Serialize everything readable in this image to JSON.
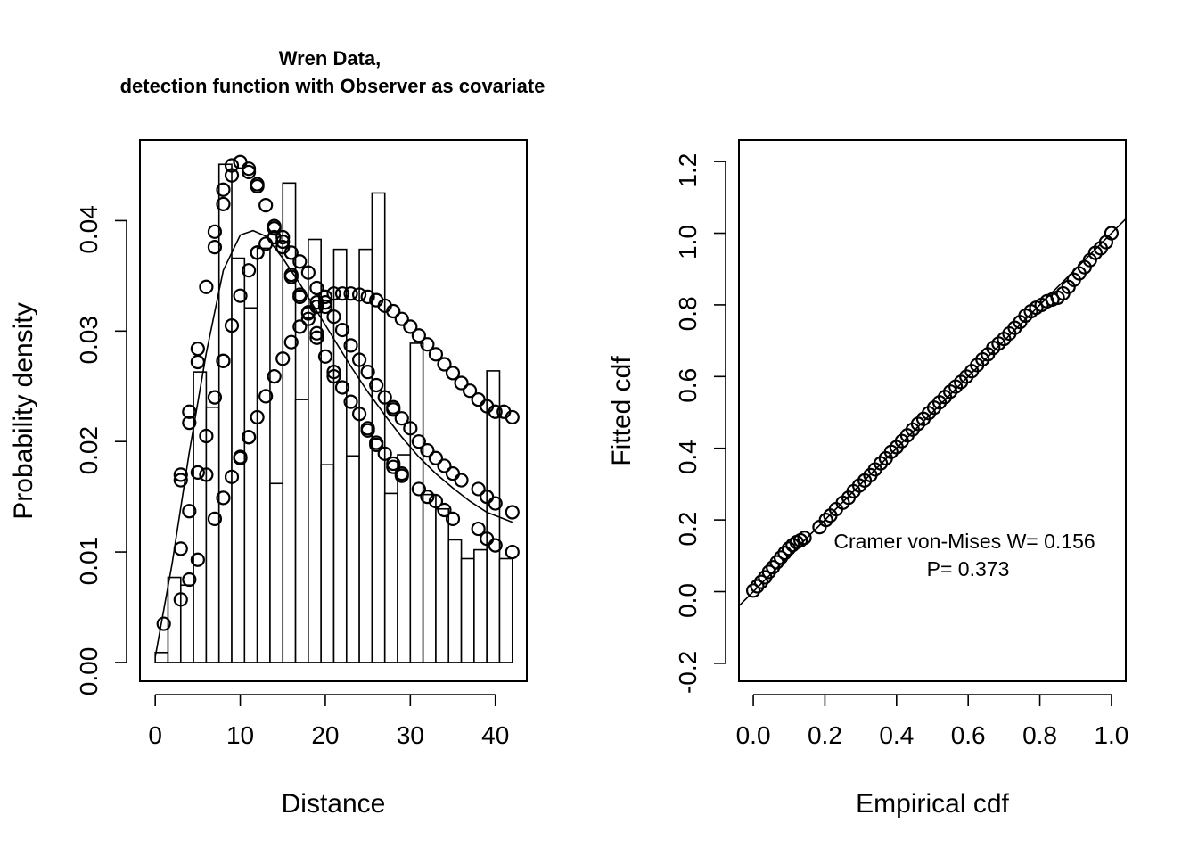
{
  "chart_data": [
    {
      "type": "histogram",
      "title": "Wren Data,\ndetection function with Observer as covariate",
      "xlabel": "Distance",
      "ylabel": "Probability density",
      "xlim": [
        -1.8,
        43.7
      ],
      "ylim": [
        -0.0017,
        0.0473
      ],
      "xticks": [
        0,
        10,
        20,
        30,
        40
      ],
      "yticks": [
        0.0,
        0.01,
        0.02,
        0.03,
        0.04
      ],
      "xtick_labels": [
        "0",
        "10",
        "20",
        "30",
        "40"
      ],
      "ytick_labels": [
        "0.00",
        "0.01",
        "0.02",
        "0.03",
        "0.04"
      ],
      "bin_edges": [
        0,
        1.5,
        3,
        4.5,
        6,
        7.5,
        9,
        10.5,
        12,
        13.5,
        15,
        16.5,
        18,
        19.5,
        21,
        22.5,
        24,
        25.5,
        27,
        28.5,
        30,
        31.5,
        33,
        34.5,
        36,
        37.5,
        39,
        40.5,
        42
      ],
      "bar_values": [
        0.0009,
        0.0077,
        0.007,
        0.0263,
        0.0231,
        0.0451,
        0.0366,
        0.0321,
        0.0375,
        0.0162,
        0.0434,
        0.0238,
        0.0383,
        0.0179,
        0.0374,
        0.0187,
        0.0374,
        0.0425,
        0.0153,
        0.0188,
        0.0289,
        0.0152,
        0.0139,
        0.0111,
        0.0094,
        0.0102,
        0.0264,
        0.0094
      ],
      "average_curve": {
        "x": [
          0,
          2,
          4,
          6,
          8,
          10,
          11.5,
          13,
          15,
          17,
          19,
          21,
          23,
          25,
          27,
          29,
          31,
          33,
          35,
          37,
          39,
          42
        ],
        "y": [
          0.0005,
          0.009,
          0.019,
          0.028,
          0.0355,
          0.0387,
          0.0391,
          0.0386,
          0.0366,
          0.0343,
          0.0318,
          0.0293,
          0.0268,
          0.0245,
          0.0224,
          0.0204,
          0.0186,
          0.0171,
          0.0158,
          0.0146,
          0.0136,
          0.0127
        ]
      },
      "series": [
        {
          "x": [
            1,
            3,
            4,
            5,
            5,
            6,
            7,
            7,
            8,
            8,
            8,
            9,
            9,
            10,
            11,
            11,
            12,
            12,
            13,
            14,
            14,
            15,
            15,
            16,
            16,
            17,
            17,
            18,
            18,
            19,
            19,
            20,
            21,
            21,
            22,
            23,
            24,
            25,
            25,
            26,
            26,
            27,
            28,
            28,
            29,
            29,
            31,
            32,
            33,
            34,
            35,
            38,
            39,
            40,
            42
          ],
          "y": [
            0.0035,
            0.017,
            0.0227,
            0.0284,
            0.0272,
            0.034,
            0.039,
            0.0376,
            0.0428,
            0.0415,
            0.0273,
            0.045,
            0.0441,
            0.0453,
            0.0447,
            0.0444,
            0.0433,
            0.0431,
            0.0414,
            0.0395,
            0.0393,
            0.0381,
            0.0376,
            0.0351,
            0.0349,
            0.0333,
            0.0331,
            0.0316,
            0.0311,
            0.0298,
            0.0294,
            0.0277,
            0.0263,
            0.0259,
            0.0249,
            0.0236,
            0.0225,
            0.021,
            0.0212,
            0.0199,
            0.0197,
            0.0189,
            0.018,
            0.0177,
            0.0171,
            0.0169,
            0.0157,
            0.015,
            0.0146,
            0.0138,
            0.013,
            0.0121,
            0.0112,
            0.0106,
            0.01
          ]
        },
        {
          "x": [
            3,
            4,
            5,
            6,
            7,
            8,
            9,
            10,
            10,
            11,
            11,
            12,
            12,
            13,
            14,
            15,
            16,
            17,
            17,
            18,
            19,
            19,
            20,
            20,
            21,
            22,
            23,
            24,
            25,
            26,
            27,
            28,
            28,
            29,
            30,
            31,
            32,
            33,
            34,
            35,
            36,
            38,
            39,
            40,
            42
          ],
          "y": [
            0.0165,
            0.0217,
            0.0172,
            0.0205,
            0.024,
            0.0273,
            0.0305,
            0.0332,
            0.0185,
            0.0355,
            0.0204,
            0.0371,
            0.0371,
            0.0379,
            0.0385,
            0.0385,
            0.0371,
            0.0363,
            0.0331,
            0.0353,
            0.0339,
            0.0322,
            0.0326,
            0.0322,
            0.0313,
            0.0301,
            0.0287,
            0.0274,
            0.0263,
            0.0251,
            0.024,
            0.0231,
            0.0229,
            0.0221,
            0.0212,
            0.02,
            0.0192,
            0.0185,
            0.0178,
            0.0171,
            0.0165,
            0.0157,
            0.015,
            0.0144,
            0.0136
          ]
        },
        {
          "x": [
            3,
            3,
            4,
            4,
            5,
            6,
            7,
            8,
            9,
            10,
            11,
            12,
            13,
            14,
            15,
            16,
            17,
            18,
            19,
            20,
            21,
            22,
            23,
            24,
            25,
            26,
            27,
            28,
            29,
            30,
            31,
            32,
            33,
            34,
            35,
            36,
            37,
            38,
            39,
            40,
            41,
            42
          ],
          "y": [
            0.0103,
            0.0057,
            0.0137,
            0.0075,
            0.0093,
            0.017,
            0.013,
            0.0149,
            0.0168,
            0.0186,
            0.0204,
            0.0222,
            0.0241,
            0.0259,
            0.0275,
            0.029,
            0.0304,
            0.0317,
            0.0326,
            0.0331,
            0.0334,
            0.0334,
            0.0334,
            0.0333,
            0.0331,
            0.0328,
            0.0323,
            0.0318,
            0.0311,
            0.0304,
            0.0296,
            0.0288,
            0.0279,
            0.027,
            0.0262,
            0.0253,
            0.0246,
            0.0238,
            0.0232,
            0.0227,
            0.0227,
            0.0222
          ]
        }
      ]
    },
    {
      "type": "scatter",
      "title": "",
      "xlabel": "Empirical cdf",
      "ylabel": "Fitted cdf",
      "xlim": [
        -0.04,
        1.04
      ],
      "ylim": [
        -0.25,
        1.26
      ],
      "xticks": [
        0,
        0.2,
        0.4,
        0.6,
        0.8,
        1.0
      ],
      "yticks": [
        -0.2,
        0,
        0.2,
        0.4,
        0.6,
        0.8,
        1.0,
        1.2
      ],
      "xtick_labels": [
        "0.0",
        "0.2",
        "0.4",
        "0.6",
        "0.8",
        "1.0"
      ],
      "ytick_labels": [
        "-0.2",
        "0.0",
        "0.2",
        "0.4",
        "0.6",
        "0.8",
        "1.0",
        "1.2"
      ],
      "reference_line": "y = x",
      "annotation": [
        "Cramer von-Mises W= 0.156",
        "P= 0.373"
      ],
      "points": {
        "x": [
          0.0,
          0.011,
          0.022,
          0.033,
          0.044,
          0.055,
          0.066,
          0.077,
          0.088,
          0.099,
          0.11,
          0.121,
          0.132,
          0.143,
          0.185,
          0.203,
          0.215,
          0.231,
          0.25,
          0.266,
          0.28,
          0.296,
          0.311,
          0.327,
          0.34,
          0.356,
          0.37,
          0.385,
          0.4,
          0.415,
          0.43,
          0.445,
          0.46,
          0.475,
          0.49,
          0.505,
          0.52,
          0.535,
          0.55,
          0.565,
          0.58,
          0.595,
          0.61,
          0.625,
          0.64,
          0.655,
          0.67,
          0.685,
          0.7,
          0.715,
          0.73,
          0.745,
          0.76,
          0.775,
          0.79,
          0.805,
          0.82,
          0.835,
          0.85,
          0.865,
          0.88,
          0.895,
          0.91,
          0.925,
          0.94,
          0.955,
          0.97,
          0.985,
          1.0
        ],
        "y": [
          0.003,
          0.015,
          0.027,
          0.04,
          0.055,
          0.068,
          0.082,
          0.095,
          0.108,
          0.12,
          0.13,
          0.138,
          0.143,
          0.15,
          0.18,
          0.2,
          0.212,
          0.23,
          0.248,
          0.262,
          0.28,
          0.296,
          0.31,
          0.325,
          0.341,
          0.358,
          0.372,
          0.39,
          0.403,
          0.42,
          0.436,
          0.452,
          0.468,
          0.482,
          0.498,
          0.513,
          0.528,
          0.543,
          0.558,
          0.572,
          0.585,
          0.6,
          0.615,
          0.632,
          0.648,
          0.662,
          0.68,
          0.692,
          0.705,
          0.72,
          0.736,
          0.752,
          0.77,
          0.782,
          0.792,
          0.8,
          0.81,
          0.815,
          0.82,
          0.832,
          0.85,
          0.87,
          0.888,
          0.905,
          0.925,
          0.945,
          0.958,
          0.975,
          1.0
        ]
      }
    }
  ]
}
